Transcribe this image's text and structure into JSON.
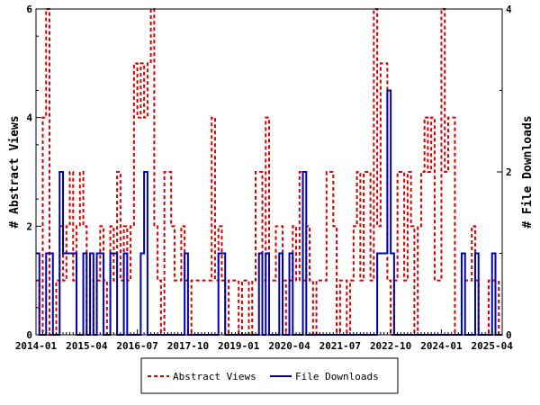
{
  "chart_data": {
    "type": "line",
    "ylabel_left": "# Abstract Views",
    "ylabel_right": "# File Downloads",
    "ylim_left": [
      0,
      6
    ],
    "ylim_right": [
      0,
      4
    ],
    "left_ticks": [
      "0",
      "2",
      "4",
      "6"
    ],
    "right_ticks": [
      "0",
      "2",
      "4"
    ],
    "x_start": "2014-01",
    "months": 138,
    "x_tick_labels": [
      "2014-01",
      "2015-04",
      "2016-07",
      "2017-10",
      "2019-01",
      "2020-04",
      "2021-07",
      "2022-10",
      "2024-01",
      "2025-04"
    ],
    "legend_position": "bottom",
    "series": [
      {
        "name": "Abstract Views",
        "axis": "left",
        "color": "#cc0000",
        "style": "dashed",
        "values": [
          1,
          0,
          4,
          6,
          0,
          0,
          1,
          2,
          1,
          2,
          3,
          1,
          2,
          3,
          2,
          0,
          1,
          0,
          1,
          2,
          1,
          0,
          2,
          1,
          3,
          1,
          2,
          1,
          2,
          5,
          4,
          5,
          4,
          5,
          6,
          2,
          1,
          0,
          3,
          3,
          2,
          1,
          1,
          2,
          1,
          0,
          1,
          1,
          1,
          1,
          1,
          1,
          4,
          1,
          2,
          1,
          0,
          1,
          1,
          1,
          0,
          1,
          1,
          0,
          1,
          3,
          3,
          1,
          4,
          1,
          1,
          2,
          2,
          1,
          0,
          1,
          2,
          1,
          3,
          1,
          2,
          1,
          0,
          1,
          1,
          1,
          3,
          3,
          2,
          0,
          1,
          1,
          0,
          1,
          2,
          3,
          1,
          3,
          3,
          1,
          6,
          2,
          5,
          5,
          1,
          0,
          1,
          3,
          3,
          1,
          3,
          2,
          0,
          2,
          3,
          4,
          3,
          4,
          1,
          1,
          6,
          3,
          4,
          4,
          0,
          0,
          1,
          1,
          1,
          2,
          1,
          0,
          0,
          0,
          1,
          1,
          1,
          0
        ]
      },
      {
        "name": "File Downloads",
        "axis": "right",
        "color": "#0000aa",
        "style": "solid",
        "values": [
          1,
          0,
          0,
          1,
          1,
          0,
          0,
          2,
          1,
          1,
          1,
          1,
          0,
          0,
          1,
          0,
          1,
          0,
          1,
          1,
          0,
          0,
          1,
          1,
          0,
          0,
          1,
          0,
          0,
          0,
          0,
          1,
          2,
          0,
          0,
          0,
          0,
          0,
          0,
          0,
          0,
          0,
          0,
          0,
          1,
          0,
          0,
          0,
          0,
          0,
          0,
          0,
          0,
          0,
          1,
          1,
          0,
          0,
          0,
          0,
          0,
          0,
          0,
          0,
          0,
          0,
          1,
          0,
          1,
          0,
          0,
          0,
          1,
          0,
          0,
          1,
          0,
          0,
          0,
          2,
          0,
          0,
          0,
          0,
          0,
          0,
          0,
          0,
          0,
          0,
          0,
          0,
          0,
          0,
          0,
          0,
          0,
          0,
          0,
          0,
          0,
          1,
          1,
          1,
          3,
          1,
          0,
          0,
          0,
          0,
          0,
          0,
          0,
          0,
          0,
          0,
          0,
          0,
          0,
          0,
          0,
          0,
          0,
          0,
          0,
          0,
          1,
          0,
          0,
          0,
          1,
          0,
          0,
          0,
          0,
          1,
          0,
          0
        ]
      }
    ]
  }
}
